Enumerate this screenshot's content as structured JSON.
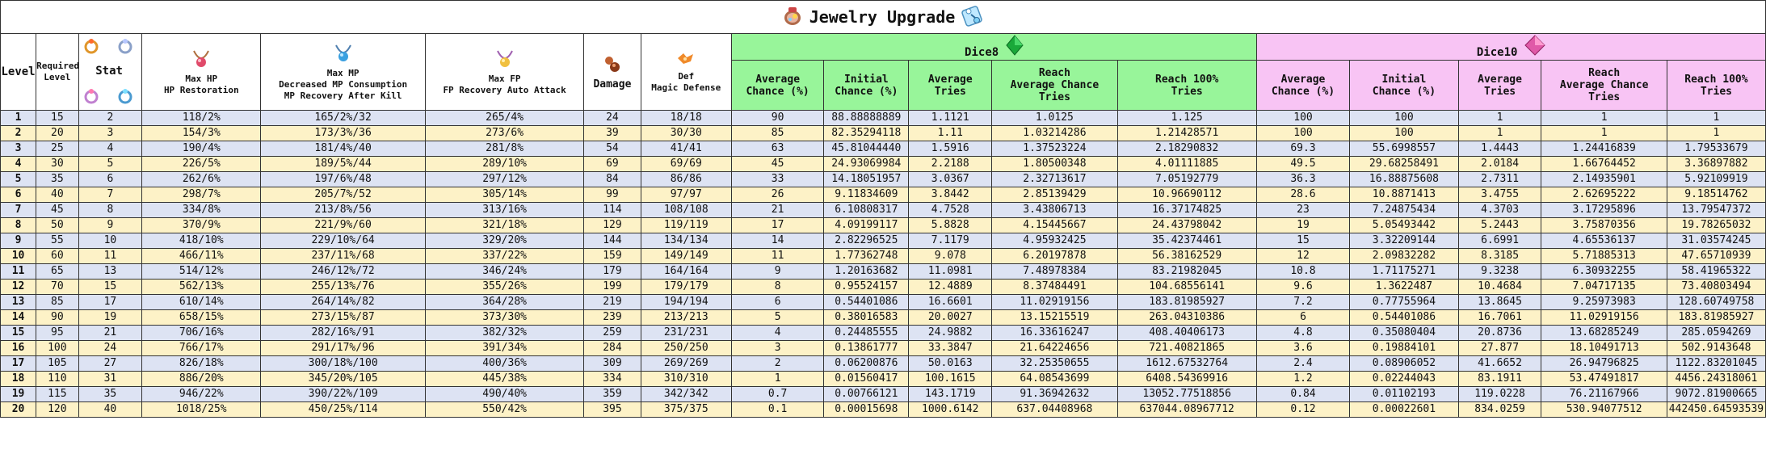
{
  "title": "Jewelry Upgrade",
  "headers": {
    "level": "Level",
    "required_level_1": "Required",
    "required_level_2": "Level",
    "stat": "Stat",
    "max_hp_1": "Max HP",
    "max_hp_2": "HP Restoration",
    "max_mp_1": "Max MP",
    "max_mp_2": "Decreased MP Consumption",
    "max_mp_3": "MP Recovery After Kill",
    "max_fp_1": "Max FP",
    "max_fp_2": "FP Recovery Auto Attack",
    "damage": "Damage",
    "def_1": "Def",
    "def_2": "Magic Defense",
    "dice8": "Dice8",
    "dice10": "Dice10",
    "avg_chance_1": "Average",
    "avg_chance_2": "Chance (%)",
    "init_chance_1": "Initial",
    "init_chance_2": "Chance (%)",
    "avg_tries_1": "Average",
    "avg_tries_2": "Tries",
    "reach_avg_1": "Reach",
    "reach_avg_2": "Average Chance",
    "reach_avg_3": "Tries",
    "reach_100_1": "Reach 100%",
    "reach_100_2": "Tries"
  },
  "icons": {
    "title_left": "jewelry-bag-icon",
    "title_right": "upgrade-scroll-icon",
    "dice8": "green-gem-icon",
    "dice10": "pink-gem-icon"
  },
  "colors": {
    "dice8_header": "#98f59a",
    "dice10_header": "#f8c4f4",
    "row_even": "#dde3f3",
    "row_odd": "#fdf2c7"
  },
  "rows": [
    {
      "level": "1",
      "req": "15",
      "stat": "2",
      "hp": "118/2%",
      "mp": "165/2%/32",
      "fp": "265/4%",
      "dmg": "24",
      "def": "18/18",
      "d8_avg": "90",
      "d8_init": "88.88888889",
      "d8_tries": "1.1121",
      "d8_reach_avg": "1.0125",
      "d8_reach100": "1.125",
      "d10_avg": "100",
      "d10_init": "100",
      "d10_tries": "1",
      "d10_reach_avg": "1",
      "d10_reach100": "1"
    },
    {
      "level": "2",
      "req": "20",
      "stat": "3",
      "hp": "154/3%",
      "mp": "173/3%/36",
      "fp": "273/6%",
      "dmg": "39",
      "def": "30/30",
      "d8_avg": "85",
      "d8_init": "82.35294118",
      "d8_tries": "1.11",
      "d8_reach_avg": "1.03214286",
      "d8_reach100": "1.21428571",
      "d10_avg": "100",
      "d10_init": "100",
      "d10_tries": "1",
      "d10_reach_avg": "1",
      "d10_reach100": "1"
    },
    {
      "level": "3",
      "req": "25",
      "stat": "4",
      "hp": "190/4%",
      "mp": "181/4%/40",
      "fp": "281/8%",
      "dmg": "54",
      "def": "41/41",
      "d8_avg": "63",
      "d8_init": "45.81044440",
      "d8_tries": "1.5916",
      "d8_reach_avg": "1.37523224",
      "d8_reach100": "2.18290832",
      "d10_avg": "69.3",
      "d10_init": "55.6998557",
      "d10_tries": "1.4443",
      "d10_reach_avg": "1.24416839",
      "d10_reach100": "1.79533679"
    },
    {
      "level": "4",
      "req": "30",
      "stat": "5",
      "hp": "226/5%",
      "mp": "189/5%/44",
      "fp": "289/10%",
      "dmg": "69",
      "def": "69/69",
      "d8_avg": "45",
      "d8_init": "24.93069984",
      "d8_tries": "2.2188",
      "d8_reach_avg": "1.80500348",
      "d8_reach100": "4.01111885",
      "d10_avg": "49.5",
      "d10_init": "29.68258491",
      "d10_tries": "2.0184",
      "d10_reach_avg": "1.66764452",
      "d10_reach100": "3.36897882"
    },
    {
      "level": "5",
      "req": "35",
      "stat": "6",
      "hp": "262/6%",
      "mp": "197/6%/48",
      "fp": "297/12%",
      "dmg": "84",
      "def": "86/86",
      "d8_avg": "33",
      "d8_init": "14.18051957",
      "d8_tries": "3.0367",
      "d8_reach_avg": "2.32713617",
      "d8_reach100": "7.05192779",
      "d10_avg": "36.3",
      "d10_init": "16.88875608",
      "d10_tries": "2.7311",
      "d10_reach_avg": "2.14935901",
      "d10_reach100": "5.92109919"
    },
    {
      "level": "6",
      "req": "40",
      "stat": "7",
      "hp": "298/7%",
      "mp": "205/7%/52",
      "fp": "305/14%",
      "dmg": "99",
      "def": "97/97",
      "d8_avg": "26",
      "d8_init": "9.11834609",
      "d8_tries": "3.8442",
      "d8_reach_avg": "2.85139429",
      "d8_reach100": "10.96690112",
      "d10_avg": "28.6",
      "d10_init": "10.8871413",
      "d10_tries": "3.4755",
      "d10_reach_avg": "2.62695222",
      "d10_reach100": "9.18514762"
    },
    {
      "level": "7",
      "req": "45",
      "stat": "8",
      "hp": "334/8%",
      "mp": "213/8%/56",
      "fp": "313/16%",
      "dmg": "114",
      "def": "108/108",
      "d8_avg": "21",
      "d8_init": "6.10808317",
      "d8_tries": "4.7528",
      "d8_reach_avg": "3.43806713",
      "d8_reach100": "16.37174825",
      "d10_avg": "23",
      "d10_init": "7.24875434",
      "d10_tries": "4.3703",
      "d10_reach_avg": "3.17295896",
      "d10_reach100": "13.79547372"
    },
    {
      "level": "8",
      "req": "50",
      "stat": "9",
      "hp": "370/9%",
      "mp": "221/9%/60",
      "fp": "321/18%",
      "dmg": "129",
      "def": "119/119",
      "d8_avg": "17",
      "d8_init": "4.09199117",
      "d8_tries": "5.8828",
      "d8_reach_avg": "4.15445667",
      "d8_reach100": "24.43798042",
      "d10_avg": "19",
      "d10_init": "5.05493442",
      "d10_tries": "5.2443",
      "d10_reach_avg": "3.75870356",
      "d10_reach100": "19.78265032"
    },
    {
      "level": "9",
      "req": "55",
      "stat": "10",
      "hp": "418/10%",
      "mp": "229/10%/64",
      "fp": "329/20%",
      "dmg": "144",
      "def": "134/134",
      "d8_avg": "14",
      "d8_init": "2.82296525",
      "d8_tries": "7.1179",
      "d8_reach_avg": "4.95932425",
      "d8_reach100": "35.42374461",
      "d10_avg": "15",
      "d10_init": "3.32209144",
      "d10_tries": "6.6991",
      "d10_reach_avg": "4.65536137",
      "d10_reach100": "31.03574245"
    },
    {
      "level": "10",
      "req": "60",
      "stat": "11",
      "hp": "466/11%",
      "mp": "237/11%/68",
      "fp": "337/22%",
      "dmg": "159",
      "def": "149/149",
      "d8_avg": "11",
      "d8_init": "1.77362748",
      "d8_tries": "9.078",
      "d8_reach_avg": "6.20197878",
      "d8_reach100": "56.38162529",
      "d10_avg": "12",
      "d10_init": "2.09832282",
      "d10_tries": "8.3185",
      "d10_reach_avg": "5.71885313",
      "d10_reach100": "47.65710939"
    },
    {
      "level": "11",
      "req": "65",
      "stat": "13",
      "hp": "514/12%",
      "mp": "246/12%/72",
      "fp": "346/24%",
      "dmg": "179",
      "def": "164/164",
      "d8_avg": "9",
      "d8_init": "1.20163682",
      "d8_tries": "11.0981",
      "d8_reach_avg": "7.48978384",
      "d8_reach100": "83.21982045",
      "d10_avg": "10.8",
      "d10_init": "1.71175271",
      "d10_tries": "9.3238",
      "d10_reach_avg": "6.30932255",
      "d10_reach100": "58.41965322"
    },
    {
      "level": "12",
      "req": "70",
      "stat": "15",
      "hp": "562/13%",
      "mp": "255/13%/76",
      "fp": "355/26%",
      "dmg": "199",
      "def": "179/179",
      "d8_avg": "8",
      "d8_init": "0.95524157",
      "d8_tries": "12.4889",
      "d8_reach_avg": "8.37484491",
      "d8_reach100": "104.68556141",
      "d10_avg": "9.6",
      "d10_init": "1.3622487",
      "d10_tries": "10.4684",
      "d10_reach_avg": "7.04717135",
      "d10_reach100": "73.40803494"
    },
    {
      "level": "13",
      "req": "85",
      "stat": "17",
      "hp": "610/14%",
      "mp": "264/14%/82",
      "fp": "364/28%",
      "dmg": "219",
      "def": "194/194",
      "d8_avg": "6",
      "d8_init": "0.54401086",
      "d8_tries": "16.6601",
      "d8_reach_avg": "11.02919156",
      "d8_reach100": "183.81985927",
      "d10_avg": "7.2",
      "d10_init": "0.77755964",
      "d10_tries": "13.8645",
      "d10_reach_avg": "9.25973983",
      "d10_reach100": "128.60749758"
    },
    {
      "level": "14",
      "req": "90",
      "stat": "19",
      "hp": "658/15%",
      "mp": "273/15%/87",
      "fp": "373/30%",
      "dmg": "239",
      "def": "213/213",
      "d8_avg": "5",
      "d8_init": "0.38016583",
      "d8_tries": "20.0027",
      "d8_reach_avg": "13.15215519",
      "d8_reach100": "263.04310386",
      "d10_avg": "6",
      "d10_init": "0.54401086",
      "d10_tries": "16.7061",
      "d10_reach_avg": "11.02919156",
      "d10_reach100": "183.81985927"
    },
    {
      "level": "15",
      "req": "95",
      "stat": "21",
      "hp": "706/16%",
      "mp": "282/16%/91",
      "fp": "382/32%",
      "dmg": "259",
      "def": "231/231",
      "d8_avg": "4",
      "d8_init": "0.24485555",
      "d8_tries": "24.9882",
      "d8_reach_avg": "16.33616247",
      "d8_reach100": "408.40406173",
      "d10_avg": "4.8",
      "d10_init": "0.35080404",
      "d10_tries": "20.8736",
      "d10_reach_avg": "13.68285249",
      "d10_reach100": "285.0594269"
    },
    {
      "level": "16",
      "req": "100",
      "stat": "24",
      "hp": "766/17%",
      "mp": "291/17%/96",
      "fp": "391/34%",
      "dmg": "284",
      "def": "250/250",
      "d8_avg": "3",
      "d8_init": "0.13861777",
      "d8_tries": "33.3847",
      "d8_reach_avg": "21.64224656",
      "d8_reach100": "721.40821865",
      "d10_avg": "3.6",
      "d10_init": "0.19884101",
      "d10_tries": "27.877",
      "d10_reach_avg": "18.10491713",
      "d10_reach100": "502.9143648"
    },
    {
      "level": "17",
      "req": "105",
      "stat": "27",
      "hp": "826/18%",
      "mp": "300/18%/100",
      "fp": "400/36%",
      "dmg": "309",
      "def": "269/269",
      "d8_avg": "2",
      "d8_init": "0.06200876",
      "d8_tries": "50.0163",
      "d8_reach_avg": "32.25350655",
      "d8_reach100": "1612.67532764",
      "d10_avg": "2.4",
      "d10_init": "0.08906052",
      "d10_tries": "41.6652",
      "d10_reach_avg": "26.94796825",
      "d10_reach100": "1122.83201045"
    },
    {
      "level": "18",
      "req": "110",
      "stat": "31",
      "hp": "886/20%",
      "mp": "345/20%/105",
      "fp": "445/38%",
      "dmg": "334",
      "def": "310/310",
      "d8_avg": "1",
      "d8_init": "0.01560417",
      "d8_tries": "100.1615",
      "d8_reach_avg": "64.08543699",
      "d8_reach100": "6408.54369916",
      "d10_avg": "1.2",
      "d10_init": "0.02244043",
      "d10_tries": "83.1911",
      "d10_reach_avg": "53.47491817",
      "d10_reach100": "4456.24318061"
    },
    {
      "level": "19",
      "req": "115",
      "stat": "35",
      "hp": "946/22%",
      "mp": "390/22%/109",
      "fp": "490/40%",
      "dmg": "359",
      "def": "342/342",
      "d8_avg": "0.7",
      "d8_init": "0.00766121",
      "d8_tries": "143.1719",
      "d8_reach_avg": "91.36942632",
      "d8_reach100": "13052.77518856",
      "d10_avg": "0.84",
      "d10_init": "0.01102193",
      "d10_tries": "119.0228",
      "d10_reach_avg": "76.21167966",
      "d10_reach100": "9072.81900665"
    },
    {
      "level": "20",
      "req": "120",
      "stat": "40",
      "hp": "1018/25%",
      "mp": "450/25%/114",
      "fp": "550/42%",
      "dmg": "395",
      "def": "375/375",
      "d8_avg": "0.1",
      "d8_init": "0.00015698",
      "d8_tries": "1000.6142",
      "d8_reach_avg": "637.04408968",
      "d8_reach100": "637044.08967712",
      "d10_avg": "0.12",
      "d10_init": "0.00022601",
      "d10_tries": "834.0259",
      "d10_reach_avg": "530.94077512",
      "d10_reach100": "442450.64593539"
    }
  ]
}
